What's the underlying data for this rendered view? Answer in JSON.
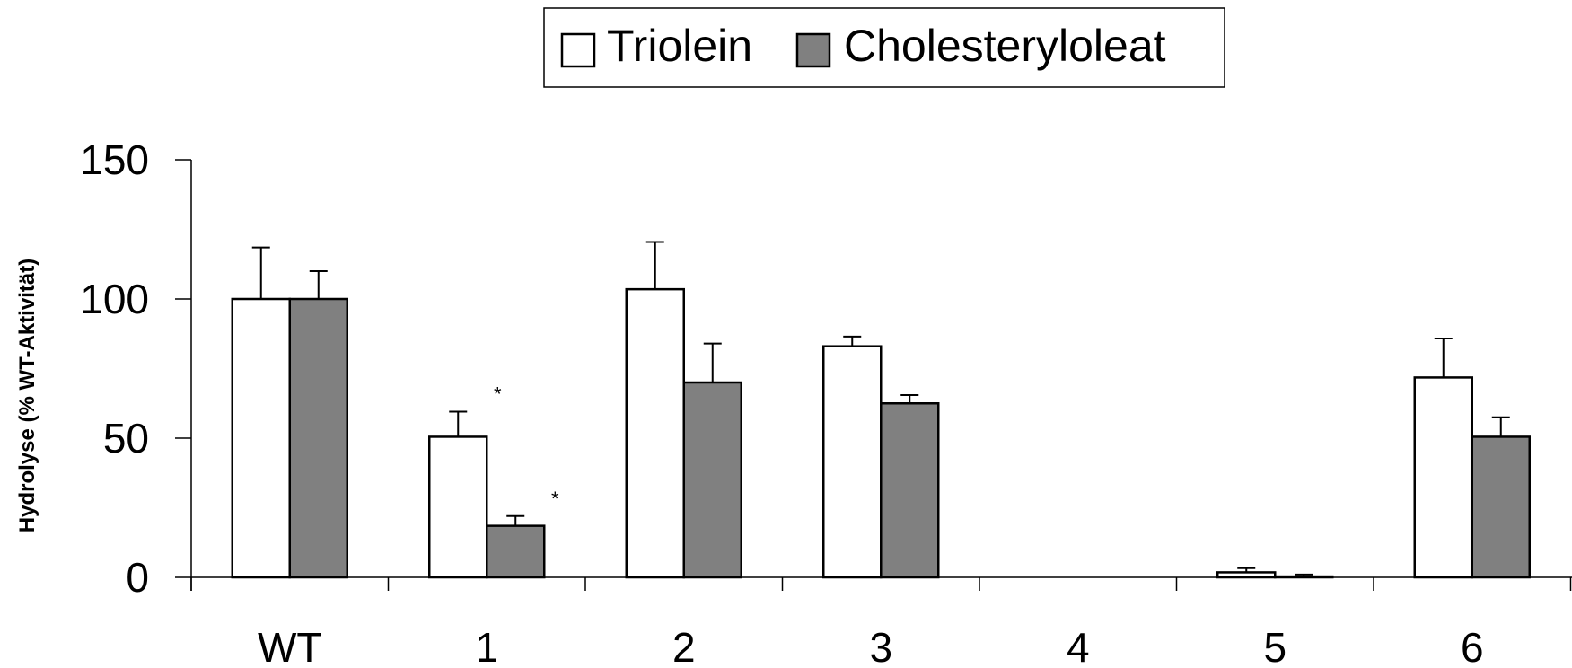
{
  "chart_data": {
    "type": "bar",
    "title": "",
    "xlabel": "",
    "ylabel": "Hydrolyse (% WT-Aktivität)",
    "ylim": [
      0,
      150
    ],
    "yticks": [
      "0",
      "50",
      "100",
      "150"
    ],
    "categories": [
      "WT",
      "1",
      "2",
      "3",
      "4",
      "5",
      "6"
    ],
    "series": [
      {
        "name": "Triolein",
        "color": "#ffffff",
        "values": [
          100,
          50.5,
          103.5,
          83,
          0,
          1.8,
          71.8
        ],
        "errors": [
          18.5,
          9,
          17,
          3.5,
          0,
          1.5,
          14
        ],
        "annotations": [
          "",
          "*",
          "",
          "",
          "",
          "",
          ""
        ]
      },
      {
        "name": "Cholesteryloleat",
        "color": "#808080",
        "values": [
          100,
          18.5,
          70,
          62.5,
          0,
          0.3,
          50.5
        ],
        "errors": [
          10,
          3.5,
          14,
          3,
          0,
          0.7,
          7
        ],
        "annotations": [
          "",
          "*",
          "",
          "",
          "",
          "",
          ""
        ]
      }
    ],
    "legend_position": "top-center",
    "grid": false
  }
}
